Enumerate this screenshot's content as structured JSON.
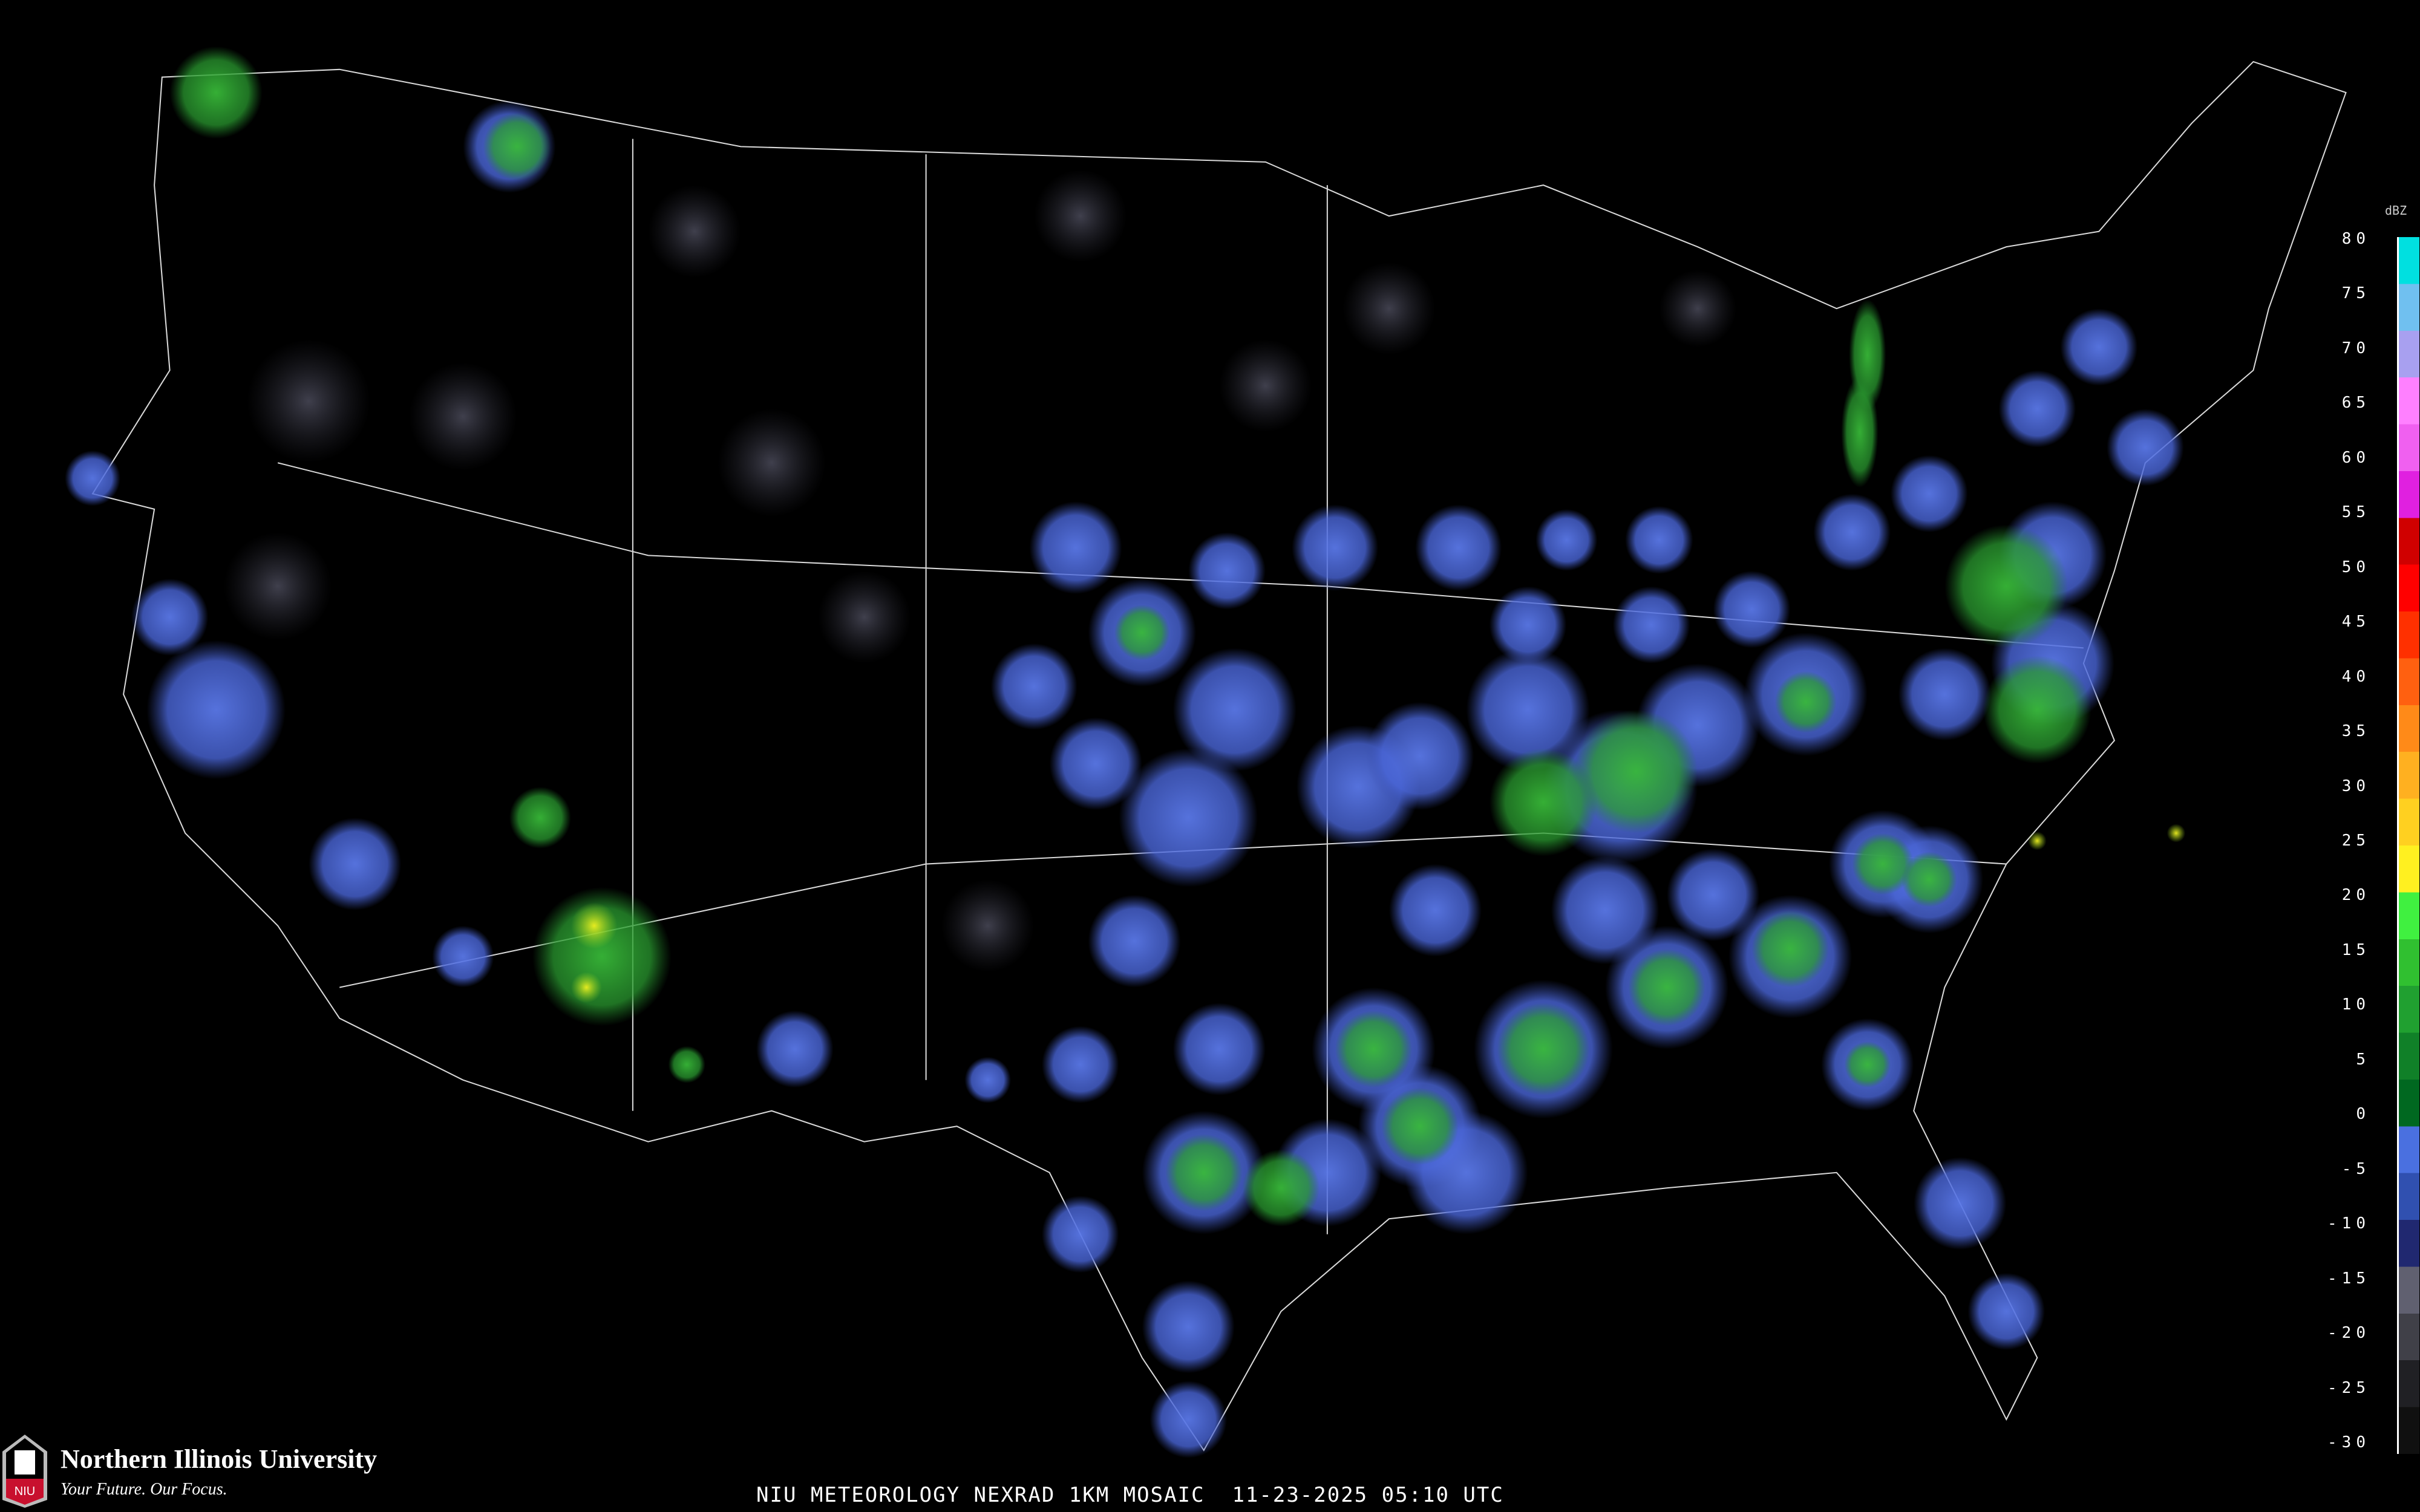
{
  "map": {
    "title": "NIU METEOROLOGY NEXRAD 1KM MOSAIC  11-23-2025 05:10 UTC",
    "product": "NEXRAD 1KM MOSAIC",
    "region": "Contiguous United States",
    "background_color": "#000000",
    "boundary_color": "#ffffff",
    "road_color": "#8b4a2a"
  },
  "legend": {
    "unit": "dBZ",
    "ticks": [
      "80",
      "75",
      "70",
      "65",
      "60",
      "55",
      "50",
      "45",
      "40",
      "35",
      "30",
      "25",
      "20",
      "15",
      "10",
      "5",
      "0",
      "-5",
      "-10",
      "-15",
      "-20",
      "-25",
      "-30"
    ],
    "colors": [
      "#00e0e0",
      "#70c0f0",
      "#a8a0f0",
      "#ff80ff",
      "#f060f0",
      "#e020e0",
      "#d00000",
      "#ff0000",
      "#ff3000",
      "#ff6010",
      "#ff8a18",
      "#ffb020",
      "#ffd020",
      "#fff020",
      "#40f040",
      "#30c030",
      "#20a030",
      "#108028",
      "#006820",
      "#4a70e0",
      "#3050b0",
      "#202870",
      "#606070",
      "#404048",
      "#202024",
      "#101010"
    ]
  },
  "logo": {
    "name": "Northern Illinois University",
    "tagline": "Your Future. Our Focus.",
    "mark": "NIU",
    "brand_color": "#c8102e"
  }
}
